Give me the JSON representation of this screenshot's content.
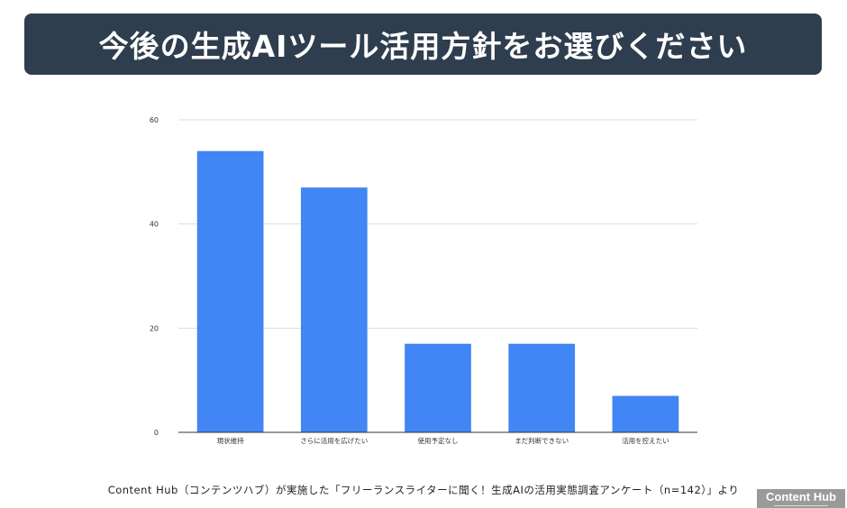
{
  "title": "今後の生成AIツール活用方針をお選びください",
  "source": "Content Hub（コンテンツハブ）が実施した「フリーランスライターに聞く！生成AIの活用実態調査アンケート（n=142）」より",
  "logo": "Content Hub",
  "colors": {
    "banner": "#2f3e4e",
    "bar": "#4285f4",
    "grid": "#dddddd",
    "axis": "#333333"
  },
  "chart_data": {
    "type": "bar",
    "categories": [
      "現状維持",
      "さらに活用を広げたい",
      "使用予定なし",
      "まだ判断できない",
      "活用を控えたい"
    ],
    "values": [
      54,
      47,
      17,
      17,
      7
    ],
    "ylim": [
      0,
      60
    ],
    "yticks": [
      0,
      20,
      40,
      60
    ],
    "grid": true,
    "legend": "none"
  }
}
